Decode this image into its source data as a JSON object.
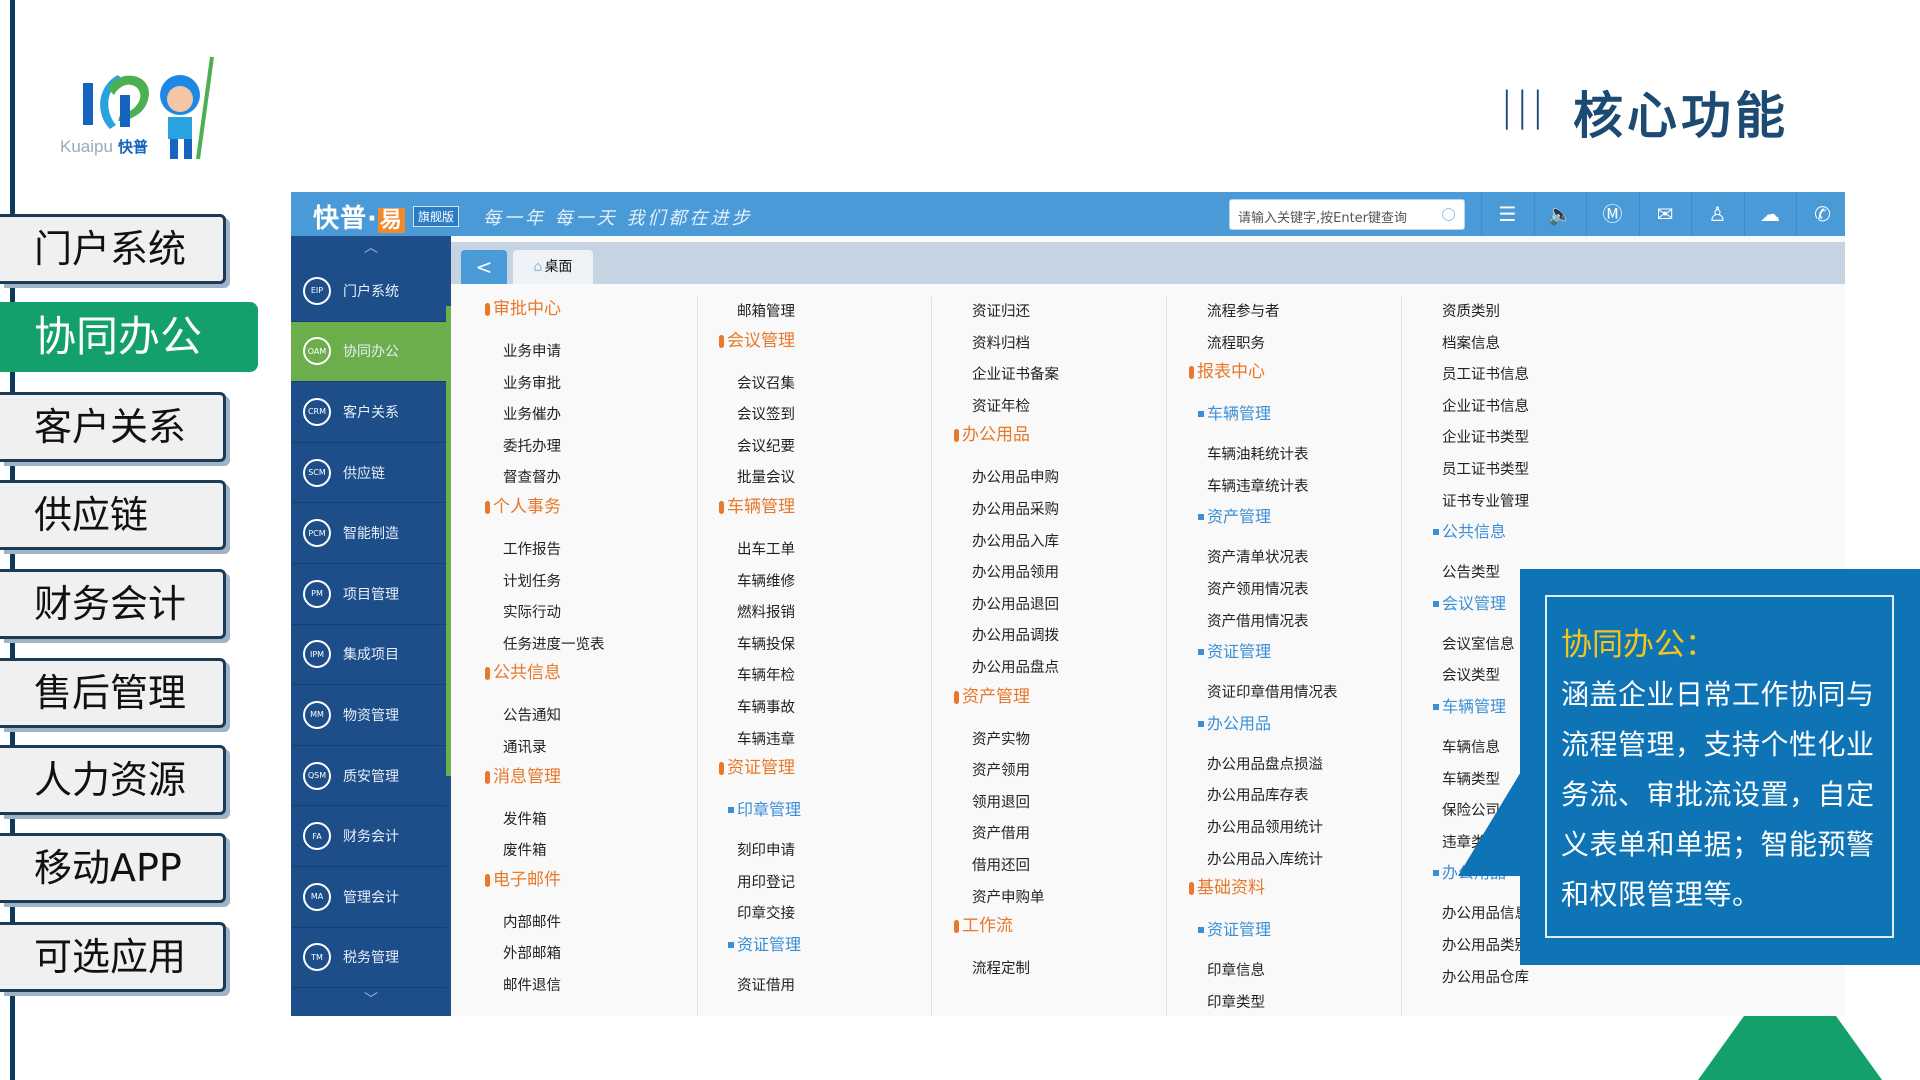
{
  "logo": {
    "text_latin": "Kuaipu",
    "text_cn": "快普"
  },
  "page_title": "核心功能",
  "title_decoration": "|||",
  "left_nav": [
    {
      "label": "门户系统",
      "active": false
    },
    {
      "label": "协同办公",
      "active": true
    },
    {
      "label": "客户关系",
      "active": false
    },
    {
      "label": "供应链",
      "active": false
    },
    {
      "label": "财务会计",
      "active": false
    },
    {
      "label": "售后管理",
      "active": false
    },
    {
      "label": "人力资源",
      "active": false
    },
    {
      "label": "移动APP",
      "active": false
    },
    {
      "label": "可选应用",
      "active": false
    }
  ],
  "app": {
    "brand": "快普·",
    "brand_yi": "易",
    "edition": "旗舰版",
    "slogan": "每一年 每一天 我们都在进步",
    "search": {
      "placeholder": "请输入关键字,按Enter键查询",
      "icon": "search-icon"
    },
    "toolbar_icons": [
      {
        "name": "list-icon",
        "glyph": "☰"
      },
      {
        "name": "speaker-icon",
        "glyph": "🔈"
      },
      {
        "name": "im-icon",
        "glyph": "Ⓜ"
      },
      {
        "name": "mail-icon",
        "glyph": "✉"
      },
      {
        "name": "user-icon",
        "glyph": "♙"
      },
      {
        "name": "cloud-icon",
        "glyph": "☁"
      },
      {
        "name": "phone-icon",
        "glyph": "✆"
      }
    ],
    "sidebar": [
      {
        "code": "EIP",
        "label": "门户系统"
      },
      {
        "code": "OAM",
        "label": "协同办公",
        "active": true
      },
      {
        "code": "CRM",
        "label": "客户关系"
      },
      {
        "code": "SCM",
        "label": "供应链"
      },
      {
        "code": "PCM",
        "label": "智能制造"
      },
      {
        "code": "PM",
        "label": "项目管理"
      },
      {
        "code": "IPM",
        "label": "集成项目"
      },
      {
        "code": "MM",
        "label": "物资管理"
      },
      {
        "code": "QSM",
        "label": "质安管理"
      },
      {
        "code": "FA",
        "label": "财务会计"
      },
      {
        "code": "MA",
        "label": "管理会计"
      },
      {
        "code": "TM",
        "label": "税务管理"
      }
    ],
    "tab": {
      "back": "<",
      "desk": "桌面"
    },
    "menu_colors": {
      "heading": "#e8782a",
      "subheading": "#3a8fd6"
    },
    "columns": [
      [
        {
          "t": "h",
          "v": "审批中心"
        },
        {
          "t": "i",
          "v": "业务申请"
        },
        {
          "t": "i",
          "v": "业务审批"
        },
        {
          "t": "i",
          "v": "业务催办"
        },
        {
          "t": "i",
          "v": "委托办理"
        },
        {
          "t": "i",
          "v": "督查督办"
        },
        {
          "t": "h",
          "v": "个人事务"
        },
        {
          "t": "i",
          "v": "工作报告"
        },
        {
          "t": "i",
          "v": "计划任务"
        },
        {
          "t": "i",
          "v": "实际行动"
        },
        {
          "t": "i",
          "v": "任务进度一览表"
        },
        {
          "t": "h",
          "v": "公共信息"
        },
        {
          "t": "i",
          "v": "公告通知"
        },
        {
          "t": "i",
          "v": "通讯录"
        },
        {
          "t": "h",
          "v": "消息管理"
        },
        {
          "t": "i",
          "v": "发件箱"
        },
        {
          "t": "i",
          "v": "废件箱"
        },
        {
          "t": "h",
          "v": "电子邮件"
        },
        {
          "t": "i",
          "v": "内部邮件"
        },
        {
          "t": "i",
          "v": "外部邮箱"
        },
        {
          "t": "i",
          "v": "邮件退信"
        }
      ],
      [
        {
          "t": "i",
          "v": "邮箱管理"
        },
        {
          "t": "h",
          "v": "会议管理"
        },
        {
          "t": "i",
          "v": "会议召集"
        },
        {
          "t": "i",
          "v": "会议签到"
        },
        {
          "t": "i",
          "v": "会议纪要"
        },
        {
          "t": "i",
          "v": "批量会议"
        },
        {
          "t": "h",
          "v": "车辆管理"
        },
        {
          "t": "i",
          "v": "出车工单"
        },
        {
          "t": "i",
          "v": "车辆维修"
        },
        {
          "t": "i",
          "v": "燃料报销"
        },
        {
          "t": "i",
          "v": "车辆投保"
        },
        {
          "t": "i",
          "v": "车辆年检"
        },
        {
          "t": "i",
          "v": "车辆事故"
        },
        {
          "t": "i",
          "v": "车辆违章"
        },
        {
          "t": "h",
          "v": "资证管理"
        },
        {
          "t": "s",
          "v": "印章管理"
        },
        {
          "t": "i",
          "v": "刻印申请"
        },
        {
          "t": "i",
          "v": "用印登记"
        },
        {
          "t": "i",
          "v": "印章交接"
        },
        {
          "t": "s",
          "v": "资证管理"
        },
        {
          "t": "i",
          "v": "资证借用"
        }
      ],
      [
        {
          "t": "i",
          "v": "资证归还"
        },
        {
          "t": "i",
          "v": "资料归档"
        },
        {
          "t": "i",
          "v": "企业证书备案"
        },
        {
          "t": "i",
          "v": "资证年检"
        },
        {
          "t": "h",
          "v": "办公用品"
        },
        {
          "t": "i",
          "v": "办公用品申购"
        },
        {
          "t": "i",
          "v": "办公用品采购"
        },
        {
          "t": "i",
          "v": "办公用品入库"
        },
        {
          "t": "i",
          "v": "办公用品领用"
        },
        {
          "t": "i",
          "v": "办公用品退回"
        },
        {
          "t": "i",
          "v": "办公用品调拨"
        },
        {
          "t": "i",
          "v": "办公用品盘点"
        },
        {
          "t": "h",
          "v": "资产管理"
        },
        {
          "t": "i",
          "v": "资产实物"
        },
        {
          "t": "i",
          "v": "资产领用"
        },
        {
          "t": "i",
          "v": "领用退回"
        },
        {
          "t": "i",
          "v": "资产借用"
        },
        {
          "t": "i",
          "v": "借用还回"
        },
        {
          "t": "i",
          "v": "资产申购单"
        },
        {
          "t": "h",
          "v": "工作流"
        },
        {
          "t": "i",
          "v": "流程定制"
        }
      ],
      [
        {
          "t": "i",
          "v": "流程参与者"
        },
        {
          "t": "i",
          "v": "流程职务"
        },
        {
          "t": "h",
          "v": "报表中心"
        },
        {
          "t": "s",
          "v": "车辆管理"
        },
        {
          "t": "i",
          "v": "车辆油耗统计表"
        },
        {
          "t": "i",
          "v": "车辆违章统计表"
        },
        {
          "t": "s",
          "v": "资产管理"
        },
        {
          "t": "i",
          "v": "资产清单状况表"
        },
        {
          "t": "i",
          "v": "资产领用情况表"
        },
        {
          "t": "i",
          "v": "资产借用情况表"
        },
        {
          "t": "s",
          "v": "资证管理"
        },
        {
          "t": "i",
          "v": "资证印章借用情况表"
        },
        {
          "t": "s",
          "v": "办公用品"
        },
        {
          "t": "i",
          "v": "办公用品盘点损溢"
        },
        {
          "t": "i",
          "v": "办公用品库存表"
        },
        {
          "t": "i",
          "v": "办公用品领用统计"
        },
        {
          "t": "i",
          "v": "办公用品入库统计"
        },
        {
          "t": "h",
          "v": "基础资料"
        },
        {
          "t": "s",
          "v": "资证管理"
        },
        {
          "t": "i",
          "v": "印章信息"
        },
        {
          "t": "i",
          "v": "印章类型"
        }
      ],
      [
        {
          "t": "i",
          "v": "资质类别"
        },
        {
          "t": "i",
          "v": "档案信息"
        },
        {
          "t": "i",
          "v": "员工证书信息"
        },
        {
          "t": "i",
          "v": "企业证书信息"
        },
        {
          "t": "i",
          "v": "企业证书类型"
        },
        {
          "t": "i",
          "v": "员工证书类型"
        },
        {
          "t": "i",
          "v": "证书专业管理"
        },
        {
          "t": "s",
          "v": "公共信息"
        },
        {
          "t": "i",
          "v": "公告类型"
        },
        {
          "t": "s",
          "v": "会议管理"
        },
        {
          "t": "i",
          "v": "会议室信息"
        },
        {
          "t": "i",
          "v": "会议类型"
        },
        {
          "t": "s",
          "v": "车辆管理"
        },
        {
          "t": "i",
          "v": "车辆信息"
        },
        {
          "t": "i",
          "v": "车辆类型"
        },
        {
          "t": "i",
          "v": "保险公司"
        },
        {
          "t": "i",
          "v": "违章类型"
        },
        {
          "t": "s",
          "v": "办公用品"
        },
        {
          "t": "i",
          "v": "办公用品信息"
        },
        {
          "t": "i",
          "v": "办公用品类别"
        },
        {
          "t": "i",
          "v": "办公用品仓库"
        }
      ]
    ]
  },
  "callout": {
    "title": "协同办公：",
    "body": "涵盖企业日常工作协同与流程管理，支持个性化业务流、审批流设置，自定义表单和单据；智能预警和权限管理等。"
  }
}
